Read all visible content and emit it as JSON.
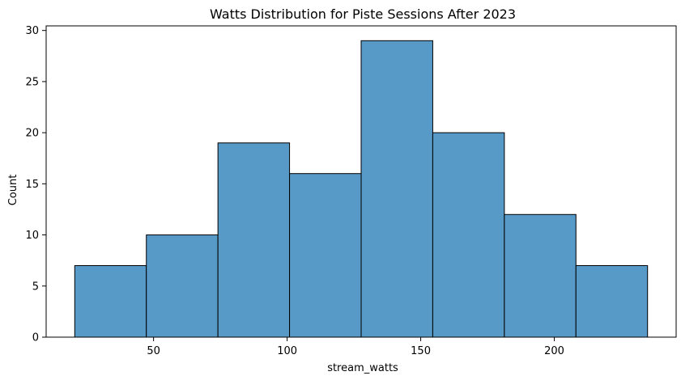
{
  "chart_data": {
    "type": "bar",
    "title": "Watts Distribution for Piste Sessions After 2023",
    "xlabel": "stream_watts",
    "ylabel": "Count",
    "bin_edges": [
      20.5,
      47.3,
      74.1,
      100.9,
      127.7,
      154.5,
      181.3,
      208.1,
      234.9
    ],
    "values": [
      7,
      10,
      19,
      16,
      29,
      20,
      12,
      7
    ],
    "xlim": [
      9.8,
      245.6
    ],
    "ylim": [
      0,
      30.45
    ],
    "xticks": [
      50,
      100,
      150,
      200
    ],
    "yticks": [
      0,
      5,
      10,
      15,
      20,
      25,
      30
    ],
    "bar_color": "#5799c7",
    "edge_color": "#000000",
    "grid": false
  }
}
